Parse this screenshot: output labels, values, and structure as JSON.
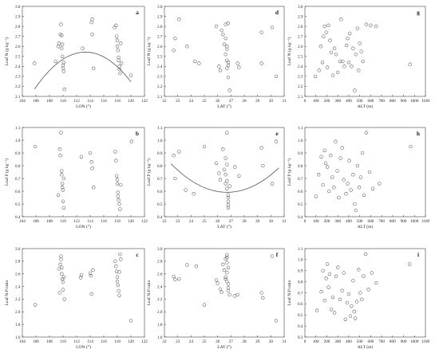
{
  "chart_data": [
    {
      "id": "a",
      "type": "scatter",
      "panel_label": "a",
      "xlabel": "LON (°)",
      "ylabel": "Leaf N (g kg⁻¹)",
      "xlim": [
        104,
        122
      ],
      "ylim": [
        2.1,
        3.0
      ],
      "xticks": [
        104,
        106,
        108,
        110,
        112,
        114,
        116,
        118,
        120,
        122
      ],
      "yticks": [
        2.1,
        2.2,
        2.3,
        2.4,
        2.5,
        2.6,
        2.7,
        2.8,
        2.9,
        3.0
      ],
      "tick_decimals": 1,
      "x": [
        105.8,
        108.9,
        109.3,
        109.4,
        109.6,
        109.7,
        109.8,
        109.8,
        109.9,
        109.9,
        110.0,
        110.0,
        110.1,
        110.1,
        110.2,
        112.9,
        114.2,
        114.3,
        114.3,
        114.5,
        117.6,
        117.8,
        117.9,
        118.0,
        118.0,
        118.1,
        118.2,
        118.2,
        118.3,
        118.3,
        118.4,
        118.5,
        118.6,
        120.0
      ],
      "y": [
        2.43,
        2.45,
        2.6,
        2.63,
        2.72,
        2.82,
        2.71,
        2.58,
        2.62,
        2.5,
        2.38,
        2.41,
        2.35,
        2.44,
        2.17,
        2.58,
        2.84,
        2.87,
        2.72,
        2.38,
        2.79,
        2.81,
        2.7,
        2.66,
        2.6,
        2.56,
        2.49,
        2.46,
        2.4,
        2.37,
        2.33,
        2.63,
        2.43,
        2.31
      ],
      "fit": {
        "kind": "quadratic",
        "x_range": [
          105.8,
          120.0
        ],
        "coefficients": [
          -81.97,
          1.492,
          -0.006585
        ]
      }
    },
    {
      "id": "b",
      "type": "scatter",
      "panel_label": "b",
      "xlabel": "LON (°)",
      "ylabel": "Leaf P (g kg⁻¹)",
      "xlim": [
        104,
        122
      ],
      "ylim": [
        0.4,
        1.1
      ],
      "xticks": [
        104,
        106,
        108,
        110,
        112,
        114,
        116,
        118,
        120,
        122
      ],
      "yticks": [
        0.4,
        0.5,
        0.6,
        0.7,
        0.8,
        0.9,
        1.0,
        1.1
      ],
      "tick_decimals": 1,
      "x": [
        105.9,
        109.3,
        109.5,
        109.6,
        109.7,
        109.8,
        109.8,
        109.9,
        109.9,
        110.0,
        110.0,
        110.1,
        110.1,
        112.7,
        114.0,
        114.2,
        114.3,
        114.5,
        117.7,
        117.8,
        117.9,
        118.0,
        118.0,
        118.1,
        118.1,
        118.2,
        118.3,
        118.4,
        118.5,
        120.1
      ],
      "y": [
        0.95,
        0.57,
        0.93,
        0.88,
        1.06,
        0.76,
        0.73,
        0.66,
        0.63,
        0.61,
        0.52,
        0.47,
        0.7,
        0.87,
        0.9,
        0.83,
        0.78,
        0.63,
        0.91,
        0.84,
        0.72,
        0.69,
        0.66,
        0.59,
        0.56,
        0.53,
        0.5,
        0.46,
        0.65,
        0.99
      ]
    },
    {
      "id": "c",
      "type": "scatter",
      "panel_label": "c",
      "xlabel": "LON (°)",
      "ylabel": "Leaf N:P ratio",
      "xlim": [
        104,
        122
      ],
      "ylim": [
        1.6,
        3.0
      ],
      "xticks": [
        104,
        106,
        108,
        110,
        112,
        114,
        116,
        118,
        120,
        122
      ],
      "yticks": [
        1.6,
        1.8,
        2.0,
        2.2,
        2.4,
        2.6,
        2.8,
        3.0
      ],
      "tick_decimals": 1,
      "x": [
        105.9,
        109.4,
        109.5,
        109.6,
        109.7,
        109.7,
        109.8,
        109.8,
        109.9,
        110.0,
        110.0,
        110.1,
        110.2,
        112.6,
        112.7,
        114.0,
        114.1,
        114.2,
        114.4,
        117.7,
        117.8,
        117.9,
        118.0,
        118.0,
        118.1,
        118.2,
        118.3,
        118.3,
        118.4,
        118.5,
        120.0
      ],
      "y": [
        2.11,
        2.68,
        2.3,
        2.75,
        2.88,
        2.83,
        2.7,
        2.6,
        2.52,
        2.47,
        2.35,
        2.55,
        2.2,
        2.54,
        2.58,
        2.61,
        2.57,
        2.28,
        2.66,
        2.8,
        2.72,
        2.64,
        2.55,
        2.48,
        2.42,
        2.33,
        2.26,
        2.63,
        2.91,
        2.83,
        1.86
      ]
    },
    {
      "id": "d",
      "type": "scatter",
      "panel_label": "d",
      "xlabel": "LAT (°)",
      "ylabel": "Leaf N (g kg⁻¹)",
      "xlim": [
        22,
        31
      ],
      "ylim": [
        2.1,
        3.0
      ],
      "xticks": [
        22,
        23,
        24,
        25,
        26,
        27,
        28,
        29,
        30,
        31
      ],
      "yticks": [
        2.1,
        2.2,
        2.3,
        2.4,
        2.5,
        2.6,
        2.7,
        2.8,
        2.9,
        3.0
      ],
      "tick_decimals": 1,
      "x": [
        22.7,
        22.8,
        23.1,
        23.7,
        24.3,
        24.6,
        25.9,
        26.1,
        26.2,
        26.3,
        26.4,
        26.5,
        26.6,
        26.6,
        26.6,
        26.7,
        26.7,
        26.7,
        26.7,
        26.8,
        26.8,
        26.8,
        26.8,
        26.9,
        27.5,
        27.6,
        29.3,
        29.3,
        30.1,
        30.4
      ],
      "y": [
        2.56,
        2.68,
        2.87,
        2.6,
        2.45,
        2.43,
        2.8,
        2.4,
        2.36,
        2.76,
        2.72,
        2.62,
        2.82,
        2.68,
        2.52,
        2.6,
        2.57,
        2.46,
        2.38,
        2.83,
        2.44,
        2.41,
        2.29,
        2.16,
        2.43,
        2.39,
        2.74,
        2.43,
        2.79,
        2.3
      ]
    },
    {
      "id": "e",
      "type": "scatter",
      "panel_label": "e",
      "xlabel": "LAT (°)",
      "ylabel": "Leaf P (g kg⁻¹)",
      "xlim": [
        22,
        31
      ],
      "ylim": [
        0.4,
        1.1
      ],
      "xticks": [
        22,
        23,
        24,
        25,
        26,
        27,
        28,
        29,
        30,
        31
      ],
      "yticks": [
        0.4,
        0.5,
        0.6,
        0.7,
        0.8,
        0.9,
        1.0,
        1.1
      ],
      "tick_decimals": 1,
      "x": [
        22.7,
        22.8,
        23.1,
        23.6,
        24.2,
        25.0,
        25.9,
        26.1,
        26.2,
        26.4,
        26.5,
        26.6,
        26.6,
        26.6,
        26.7,
        26.7,
        26.7,
        26.7,
        26.8,
        26.8,
        26.8,
        26.8,
        26.8,
        26.9,
        27.3,
        27.6,
        29.3,
        29.4,
        30.1,
        30.4
      ],
      "y": [
        0.88,
        0.7,
        0.91,
        0.61,
        0.58,
        0.95,
        0.82,
        0.74,
        0.69,
        0.93,
        0.77,
        0.86,
        0.73,
        0.66,
        1.06,
        0.81,
        0.68,
        0.62,
        0.57,
        0.55,
        0.52,
        0.49,
        0.47,
        0.64,
        0.79,
        0.72,
        0.94,
        0.8,
        0.66,
        0.99
      ],
      "fit": {
        "kind": "quadratic",
        "x_range": [
          22.5,
          30.6
        ],
        "coefficients": [
          9.6004,
          -0.6746,
          0.012629
        ]
      }
    },
    {
      "id": "f",
      "type": "scatter",
      "panel_label": "f",
      "xlabel": "LAT (°)",
      "ylabel": "Leaf N:P ratio",
      "xlim": [
        22,
        31
      ],
      "ylim": [
        1.6,
        3.0
      ],
      "xticks": [
        22,
        23,
        24,
        25,
        26,
        27,
        28,
        29,
        30,
        31
      ],
      "yticks": [
        1.6,
        1.8,
        2.0,
        2.2,
        2.4,
        2.6,
        2.8,
        3.0
      ],
      "tick_decimals": 1,
      "x": [
        22.7,
        22.8,
        23.1,
        23.7,
        24.4,
        25.0,
        25.9,
        26.0,
        26.2,
        26.3,
        26.4,
        26.5,
        26.6,
        26.6,
        26.6,
        26.7,
        26.7,
        26.7,
        26.7,
        26.7,
        26.8,
        26.8,
        26.8,
        26.8,
        26.9,
        27.3,
        27.5,
        29.3,
        29.4,
        30.1,
        30.4
      ],
      "y": [
        2.56,
        2.51,
        2.52,
        2.74,
        2.72,
        2.11,
        2.5,
        2.45,
        2.36,
        2.31,
        2.75,
        2.66,
        2.55,
        2.52,
        2.84,
        2.9,
        2.86,
        2.78,
        2.62,
        2.48,
        2.7,
        2.44,
        2.38,
        2.33,
        2.27,
        2.25,
        2.27,
        2.3,
        2.22,
        2.88,
        1.86
      ]
    },
    {
      "id": "g",
      "type": "scatter",
      "panel_label": "g",
      "xlabel": "ALT (m)",
      "ylabel": "Leaf N (g kg⁻¹)",
      "xlim": [
        0,
        1100
      ],
      "ylim": [
        2.1,
        3.0
      ],
      "xticks": [
        0,
        100,
        200,
        300,
        400,
        500,
        600,
        700,
        800,
        900,
        1000,
        1100
      ],
      "yticks": [
        2.1,
        2.2,
        2.3,
        2.4,
        2.5,
        2.6,
        2.7,
        2.8,
        2.9,
        3.0
      ],
      "tick_decimals": 1,
      "x": [
        96,
        130,
        145,
        160,
        170,
        180,
        195,
        205,
        215,
        230,
        240,
        255,
        270,
        285,
        300,
        320,
        330,
        345,
        360,
        380,
        390,
        400,
        410,
        425,
        440,
        455,
        465,
        480,
        490,
        500,
        515,
        530,
        560,
        600,
        650,
        960
      ],
      "y": [
        2.3,
        2.36,
        2.6,
        2.44,
        2.7,
        2.8,
        2.74,
        2.39,
        2.81,
        2.66,
        2.54,
        2.31,
        2.58,
        2.52,
        2.34,
        2.45,
        2.87,
        2.45,
        2.4,
        2.61,
        2.68,
        2.44,
        2.73,
        2.4,
        2.58,
        2.16,
        2.52,
        2.78,
        2.36,
        2.63,
        2.55,
        2.45,
        2.82,
        2.81,
        2.8,
        2.42
      ]
    },
    {
      "id": "h",
      "type": "scatter",
      "panel_label": "h",
      "xlabel": "ALT (m)",
      "ylabel": "Leaf P (g kg⁻¹)",
      "xlim": [
        0,
        1100
      ],
      "ylim": [
        0.4,
        1.1
      ],
      "xticks": [
        0,
        100,
        200,
        300,
        400,
        500,
        600,
        700,
        800,
        900,
        1000,
        1100
      ],
      "yticks": [
        0.4,
        0.5,
        0.6,
        0.7,
        0.8,
        0.9,
        1.0,
        1.1
      ],
      "tick_decimals": 1,
      "x": [
        100,
        125,
        150,
        165,
        180,
        190,
        205,
        220,
        235,
        250,
        265,
        280,
        295,
        310,
        325,
        340,
        355,
        375,
        390,
        405,
        420,
        440,
        455,
        465,
        480,
        495,
        510,
        525,
        540,
        560,
        590,
        620,
        680,
        965
      ],
      "y": [
        0.56,
        0.73,
        0.87,
        0.65,
        0.92,
        0.82,
        0.79,
        0.6,
        0.88,
        0.71,
        0.63,
        0.99,
        0.76,
        0.55,
        0.86,
        0.94,
        0.69,
        0.58,
        0.66,
        0.84,
        0.61,
        0.73,
        0.5,
        0.45,
        0.8,
        0.63,
        0.71,
        0.9,
        0.57,
        1.06,
        0.75,
        0.62,
        0.66,
        0.95
      ]
    },
    {
      "id": "i",
      "type": "scatter",
      "panel_label": "i",
      "xlabel": "ALT (m)",
      "ylabel": "Leaf N:P ratio",
      "xlim": [
        0,
        1100
      ],
      "ylim": [
        0.3,
        1.1
      ],
      "xticks": [
        0,
        100,
        200,
        300,
        400,
        500,
        600,
        700,
        800,
        900,
        1000,
        1100
      ],
      "yticks": [
        0.3,
        0.4,
        0.5,
        0.6,
        0.7,
        0.8,
        0.9,
        1.0,
        1.1
      ],
      "tick_decimals": 1,
      "x": [
        110,
        150,
        165,
        180,
        195,
        205,
        215,
        225,
        240,
        255,
        270,
        285,
        300,
        320,
        340,
        355,
        370,
        385,
        400,
        415,
        425,
        440,
        450,
        460,
        475,
        490,
        505,
        520,
        535,
        555,
        580,
        610,
        650,
        955
      ],
      "y": [
        0.54,
        0.71,
        0.9,
        0.63,
        0.83,
        0.96,
        0.75,
        0.87,
        0.55,
        0.66,
        0.52,
        0.85,
        0.93,
        0.64,
        0.72,
        0.88,
        0.46,
        0.61,
        0.69,
        0.49,
        0.58,
        0.81,
        0.53,
        0.47,
        0.62,
        0.91,
        0.7,
        0.64,
        0.85,
        1.05,
        0.73,
        0.88,
        0.79,
        0.96
      ]
    }
  ]
}
